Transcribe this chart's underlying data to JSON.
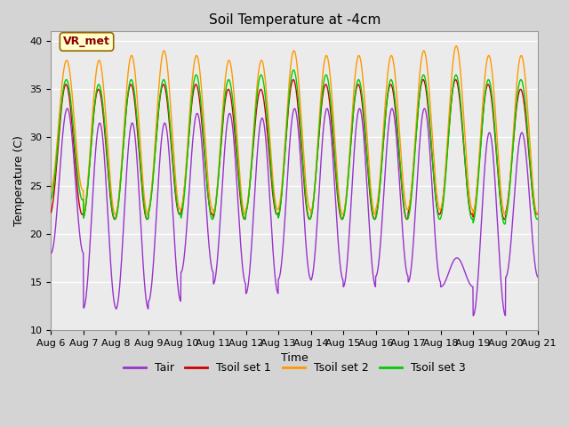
{
  "title": "Soil Temperature at -4cm",
  "xlabel": "Time",
  "ylabel": "Temperature (C)",
  "ylim": [
    10,
    41
  ],
  "yticks": [
    10,
    15,
    20,
    25,
    30,
    35,
    40
  ],
  "fig_bg_color": "#d4d4d4",
  "plot_bg_color": "#ebebeb",
  "colors": {
    "Tair": "#9933cc",
    "Tsoil1": "#cc0000",
    "Tsoil2": "#ff9900",
    "Tsoil3": "#00cc00"
  },
  "legend_labels": [
    "Tair",
    "Tsoil set 1",
    "Tsoil set 2",
    "Tsoil set 3"
  ],
  "annotation_text": "VR_met",
  "annotation_box_color": "#ffffcc",
  "annotation_box_edge": "#996600",
  "days": 15,
  "points_per_day": 144,
  "x_tick_labels": [
    "Aug 6",
    "Aug 7",
    "Aug 8",
    "Aug 9",
    "Aug 10",
    "Aug 11",
    "Aug 12",
    "Aug 13",
    "Aug 14",
    "Aug 15",
    "Aug 16",
    "Aug 17",
    "Aug 18",
    "Aug 19",
    "Aug 20",
    "Aug 21"
  ],
  "linewidth": 1.0,
  "Tair_day_params": [
    {
      "min": 18.0,
      "max": 33.0
    },
    {
      "min": 12.3,
      "max": 31.5
    },
    {
      "min": 12.2,
      "max": 31.5
    },
    {
      "min": 13.0,
      "max": 31.5
    },
    {
      "min": 16.0,
      "max": 32.5
    },
    {
      "min": 14.8,
      "max": 32.5
    },
    {
      "min": 13.8,
      "max": 32.0
    },
    {
      "min": 15.3,
      "max": 33.0
    },
    {
      "min": 15.2,
      "max": 33.0
    },
    {
      "min": 14.5,
      "max": 33.0
    },
    {
      "min": 15.6,
      "max": 33.0
    },
    {
      "min": 15.0,
      "max": 33.0
    },
    {
      "min": 14.5,
      "max": 17.5
    },
    {
      "min": 11.5,
      "max": 30.5
    },
    {
      "min": 15.5,
      "max": 30.5
    }
  ],
  "Tsoil1_day_params": [
    {
      "min": 22.0,
      "max": 35.5
    },
    {
      "min": 21.5,
      "max": 35.0
    },
    {
      "min": 21.5,
      "max": 35.5
    },
    {
      "min": 22.0,
      "max": 35.5
    },
    {
      "min": 22.0,
      "max": 35.5
    },
    {
      "min": 21.5,
      "max": 35.0
    },
    {
      "min": 22.0,
      "max": 35.0
    },
    {
      "min": 21.5,
      "max": 36.0
    },
    {
      "min": 21.5,
      "max": 35.5
    },
    {
      "min": 21.5,
      "max": 35.5
    },
    {
      "min": 21.5,
      "max": 35.5
    },
    {
      "min": 22.0,
      "max": 36.0
    },
    {
      "min": 22.0,
      "max": 36.0
    },
    {
      "min": 21.5,
      "max": 35.5
    },
    {
      "min": 22.0,
      "max": 35.0
    }
  ],
  "Tsoil2_day_params": [
    {
      "min": 24.5,
      "max": 38.0
    },
    {
      "min": 22.0,
      "max": 38.0
    },
    {
      "min": 22.0,
      "max": 38.5
    },
    {
      "min": 22.5,
      "max": 39.0
    },
    {
      "min": 22.5,
      "max": 38.5
    },
    {
      "min": 22.0,
      "max": 38.0
    },
    {
      "min": 22.5,
      "max": 38.0
    },
    {
      "min": 22.5,
      "max": 39.0
    },
    {
      "min": 22.0,
      "max": 38.5
    },
    {
      "min": 22.0,
      "max": 38.5
    },
    {
      "min": 22.5,
      "max": 38.5
    },
    {
      "min": 22.5,
      "max": 39.0
    },
    {
      "min": 22.5,
      "max": 39.5
    },
    {
      "min": 22.0,
      "max": 38.5
    },
    {
      "min": 22.0,
      "max": 38.5
    }
  ],
  "Tsoil3_day_params": [
    {
      "min": 23.5,
      "max": 36.0
    },
    {
      "min": 21.5,
      "max": 35.5
    },
    {
      "min": 21.5,
      "max": 36.0
    },
    {
      "min": 22.0,
      "max": 36.0
    },
    {
      "min": 21.5,
      "max": 36.5
    },
    {
      "min": 21.5,
      "max": 36.0
    },
    {
      "min": 22.0,
      "max": 36.5
    },
    {
      "min": 21.5,
      "max": 37.0
    },
    {
      "min": 21.5,
      "max": 36.5
    },
    {
      "min": 21.5,
      "max": 36.0
    },
    {
      "min": 21.5,
      "max": 36.0
    },
    {
      "min": 21.5,
      "max": 36.5
    },
    {
      "min": 21.5,
      "max": 36.5
    },
    {
      "min": 21.0,
      "max": 36.0
    },
    {
      "min": 21.5,
      "max": 36.0
    }
  ]
}
